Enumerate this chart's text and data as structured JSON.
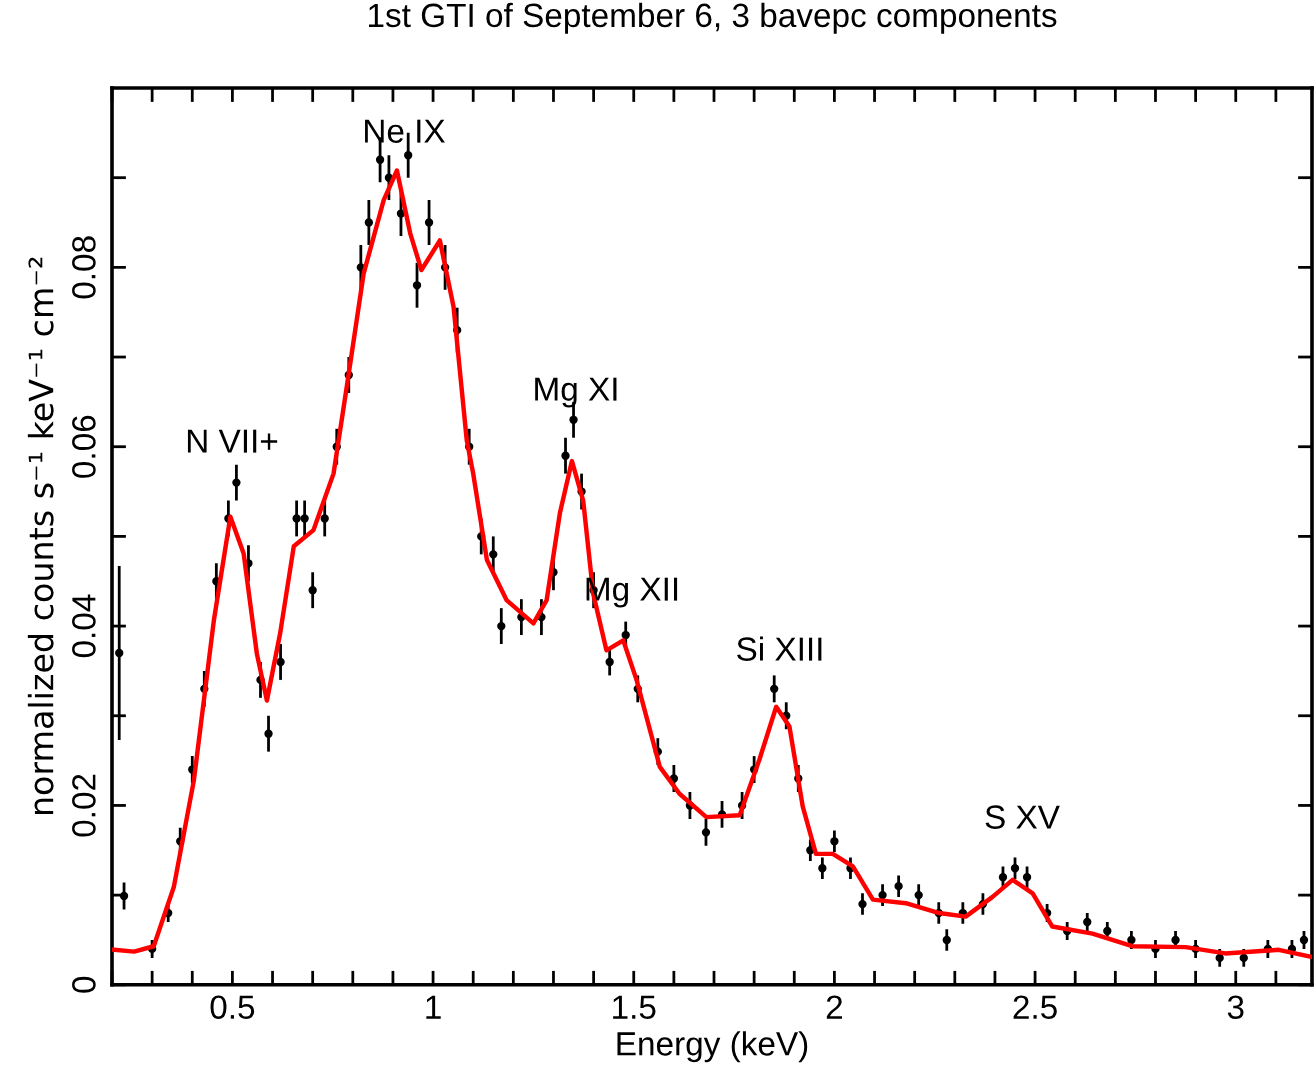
{
  "chart_data": {
    "type": "scatter",
    "title": "1st GTI of September 6, 3 bavepc components",
    "xlabel": "Energy (keV)",
    "ylabel": "normalized counts s⁻¹ keV⁻¹ cm⁻²",
    "xlim": [
      0.2,
      3.19
    ],
    "ylim": [
      0,
      0.1
    ],
    "xticks": [
      {
        "value": 0.2,
        "label": null
      },
      {
        "value": 0.3,
        "label": null
      },
      {
        "value": 0.4,
        "label": null
      },
      {
        "value": 0.5,
        "label": "0.5"
      },
      {
        "value": 0.6,
        "label": null
      },
      {
        "value": 0.7,
        "label": null
      },
      {
        "value": 0.8,
        "label": null
      },
      {
        "value": 0.9,
        "label": null
      },
      1,
      {
        "value": 1.1,
        "label": null
      },
      {
        "value": 1.2,
        "label": null
      },
      {
        "value": 1.3,
        "label": null
      },
      {
        "value": 1.4,
        "label": null
      },
      1.5,
      {
        "value": 1.6,
        "label": null
      },
      {
        "value": 1.7,
        "label": null
      },
      {
        "value": 1.8,
        "label": null
      },
      {
        "value": 1.9,
        "label": null
      },
      2,
      {
        "value": 2.1,
        "label": null
      },
      {
        "value": 2.2,
        "label": null
      },
      {
        "value": 2.3,
        "label": null
      },
      {
        "value": 2.4,
        "label": null
      },
      2.5,
      {
        "value": 2.6,
        "label": null
      },
      {
        "value": 2.7,
        "label": null
      },
      {
        "value": 2.8,
        "label": null
      },
      {
        "value": 2.9,
        "label": null
      },
      3,
      {
        "value": 3.1,
        "label": null
      }
    ],
    "yticks": [
      0,
      {
        "value": 0.01,
        "label": null
      },
      0.02,
      {
        "value": 0.03,
        "label": null
      },
      0.04,
      {
        "value": 0.05,
        "label": null
      },
      0.06,
      {
        "value": 0.07,
        "label": null
      },
      0.08,
      {
        "value": 0.09,
        "label": null
      }
    ],
    "grid": false,
    "annotations": [
      "N VII+",
      "Ne IX",
      "Mg XI",
      "Mg XII",
      "Si XIII",
      "S XV"
    ],
    "series": [
      {
        "color": "#000000",
        "marker": "circle",
        "x": [
          0.218,
          0.23,
          0.3,
          0.34,
          0.37,
          0.4,
          0.43,
          0.46,
          0.49,
          0.51,
          0.54,
          0.57,
          0.59,
          0.62,
          0.66,
          0.68,
          0.7,
          0.73,
          0.76,
          0.79,
          0.82,
          0.84,
          0.868,
          0.89,
          0.92,
          0.938,
          0.96,
          0.99,
          1.03,
          1.06,
          1.09,
          1.12,
          1.15,
          1.17,
          1.22,
          1.27,
          1.3,
          1.33,
          1.35,
          1.37,
          1.4,
          1.44,
          1.48,
          1.51,
          1.56,
          1.6,
          1.64,
          1.68,
          1.72,
          1.77,
          1.8,
          1.85,
          1.88,
          1.91,
          1.94,
          1.97,
          2.0,
          2.04,
          2.07,
          2.12,
          2.16,
          2.21,
          2.26,
          2.28,
          2.32,
          2.37,
          2.42,
          2.45,
          2.48,
          2.53,
          2.58,
          2.63,
          2.68,
          2.74,
          2.8,
          2.85,
          2.9,
          2.96,
          3.02,
          3.08,
          3.14,
          3.17
        ],
        "values": [
          0.037,
          0.0099,
          0.004,
          0.008,
          0.016,
          0.024,
          0.033,
          0.045,
          0.052,
          0.056,
          0.047,
          0.034,
          0.028,
          0.036,
          0.052,
          0.052,
          0.044,
          0.052,
          0.06,
          0.068,
          0.08,
          0.085,
          0.092,
          0.09,
          0.086,
          0.0925,
          0.078,
          0.085,
          0.08,
          0.073,
          0.06,
          0.05,
          0.048,
          0.04,
          0.041,
          0.041,
          0.046,
          0.059,
          0.063,
          0.055,
          0.044,
          0.036,
          0.039,
          0.033,
          0.026,
          0.023,
          0.02,
          0.017,
          0.019,
          0.02,
          0.024,
          0.033,
          0.03,
          0.023,
          0.015,
          0.013,
          0.016,
          0.013,
          0.009,
          0.01,
          0.011,
          0.01,
          0.008,
          0.005,
          0.008,
          0.009,
          0.012,
          0.013,
          0.012,
          0.008,
          0.006,
          0.007,
          0.006,
          0.005,
          0.004,
          0.005,
          0.004,
          0.003,
          0.003,
          0.004,
          0.004,
          0.005
        ],
        "errors": [
          0.0097,
          0.0015,
          0.001,
          0.001,
          0.0015,
          0.0015,
          0.002,
          0.002,
          0.002,
          0.002,
          0.002,
          0.002,
          0.002,
          0.002,
          0.002,
          0.002,
          0.002,
          0.002,
          0.002,
          0.002,
          0.0025,
          0.0025,
          0.0025,
          0.0025,
          0.0025,
          0.0025,
          0.0025,
          0.0025,
          0.0025,
          0.0025,
          0.002,
          0.002,
          0.002,
          0.002,
          0.002,
          0.002,
          0.002,
          0.002,
          0.002,
          0.002,
          0.002,
          0.0015,
          0.0015,
          0.0015,
          0.0015,
          0.0015,
          0.0015,
          0.0015,
          0.0015,
          0.0015,
          0.0015,
          0.0015,
          0.0015,
          0.0015,
          0.0012,
          0.0012,
          0.0012,
          0.0012,
          0.0012,
          0.0012,
          0.0012,
          0.0012,
          0.0012,
          0.0012,
          0.0012,
          0.0012,
          0.0012,
          0.0012,
          0.0012,
          0.001,
          0.001,
          0.001,
          0.001,
          0.001,
          0.001,
          0.001,
          0.001,
          0.001,
          0.001,
          0.001,
          0.001,
          0.001
        ]
      },
      {
        "type": "line",
        "color": "#ff0000",
        "marker": "none",
        "line_style": "solid",
        "x": [
          0.205,
          0.255,
          0.304,
          0.354,
          0.404,
          0.454,
          0.495,
          0.528,
          0.561,
          0.586,
          0.619,
          0.653,
          0.702,
          0.752,
          0.785,
          0.827,
          0.877,
          0.91,
          0.943,
          0.971,
          1.017,
          1.051,
          1.084,
          1.1,
          1.134,
          1.183,
          1.25,
          1.283,
          1.316,
          1.346,
          1.374,
          1.399,
          1.432,
          1.474,
          1.507,
          1.565,
          1.614,
          1.681,
          1.764,
          1.813,
          1.855,
          1.888,
          1.921,
          1.954,
          1.996,
          2.046,
          2.096,
          2.178,
          2.261,
          2.327,
          2.394,
          2.444,
          2.494,
          2.543,
          2.643,
          2.742,
          2.875,
          2.974,
          3.107,
          3.19
        ],
        "values": [
          0.0039,
          0.0037,
          0.0043,
          0.0109,
          0.0228,
          0.0407,
          0.0522,
          0.0481,
          0.0369,
          0.0317,
          0.0392,
          0.0489,
          0.0507,
          0.057,
          0.0667,
          0.0793,
          0.0875,
          0.0908,
          0.0838,
          0.0797,
          0.083,
          0.0756,
          0.0607,
          0.057,
          0.0474,
          0.0429,
          0.0403,
          0.0429,
          0.0526,
          0.0584,
          0.054,
          0.0436,
          0.0373,
          0.0384,
          0.034,
          0.0243,
          0.0213,
          0.0187,
          0.0189,
          0.0251,
          0.031,
          0.0288,
          0.0199,
          0.0146,
          0.0146,
          0.0132,
          0.0095,
          0.0091,
          0.008,
          0.0076,
          0.0098,
          0.0117,
          0.0102,
          0.0065,
          0.0057,
          0.0043,
          0.0042,
          0.0035,
          0.0039,
          0.0031
        ]
      }
    ]
  }
}
